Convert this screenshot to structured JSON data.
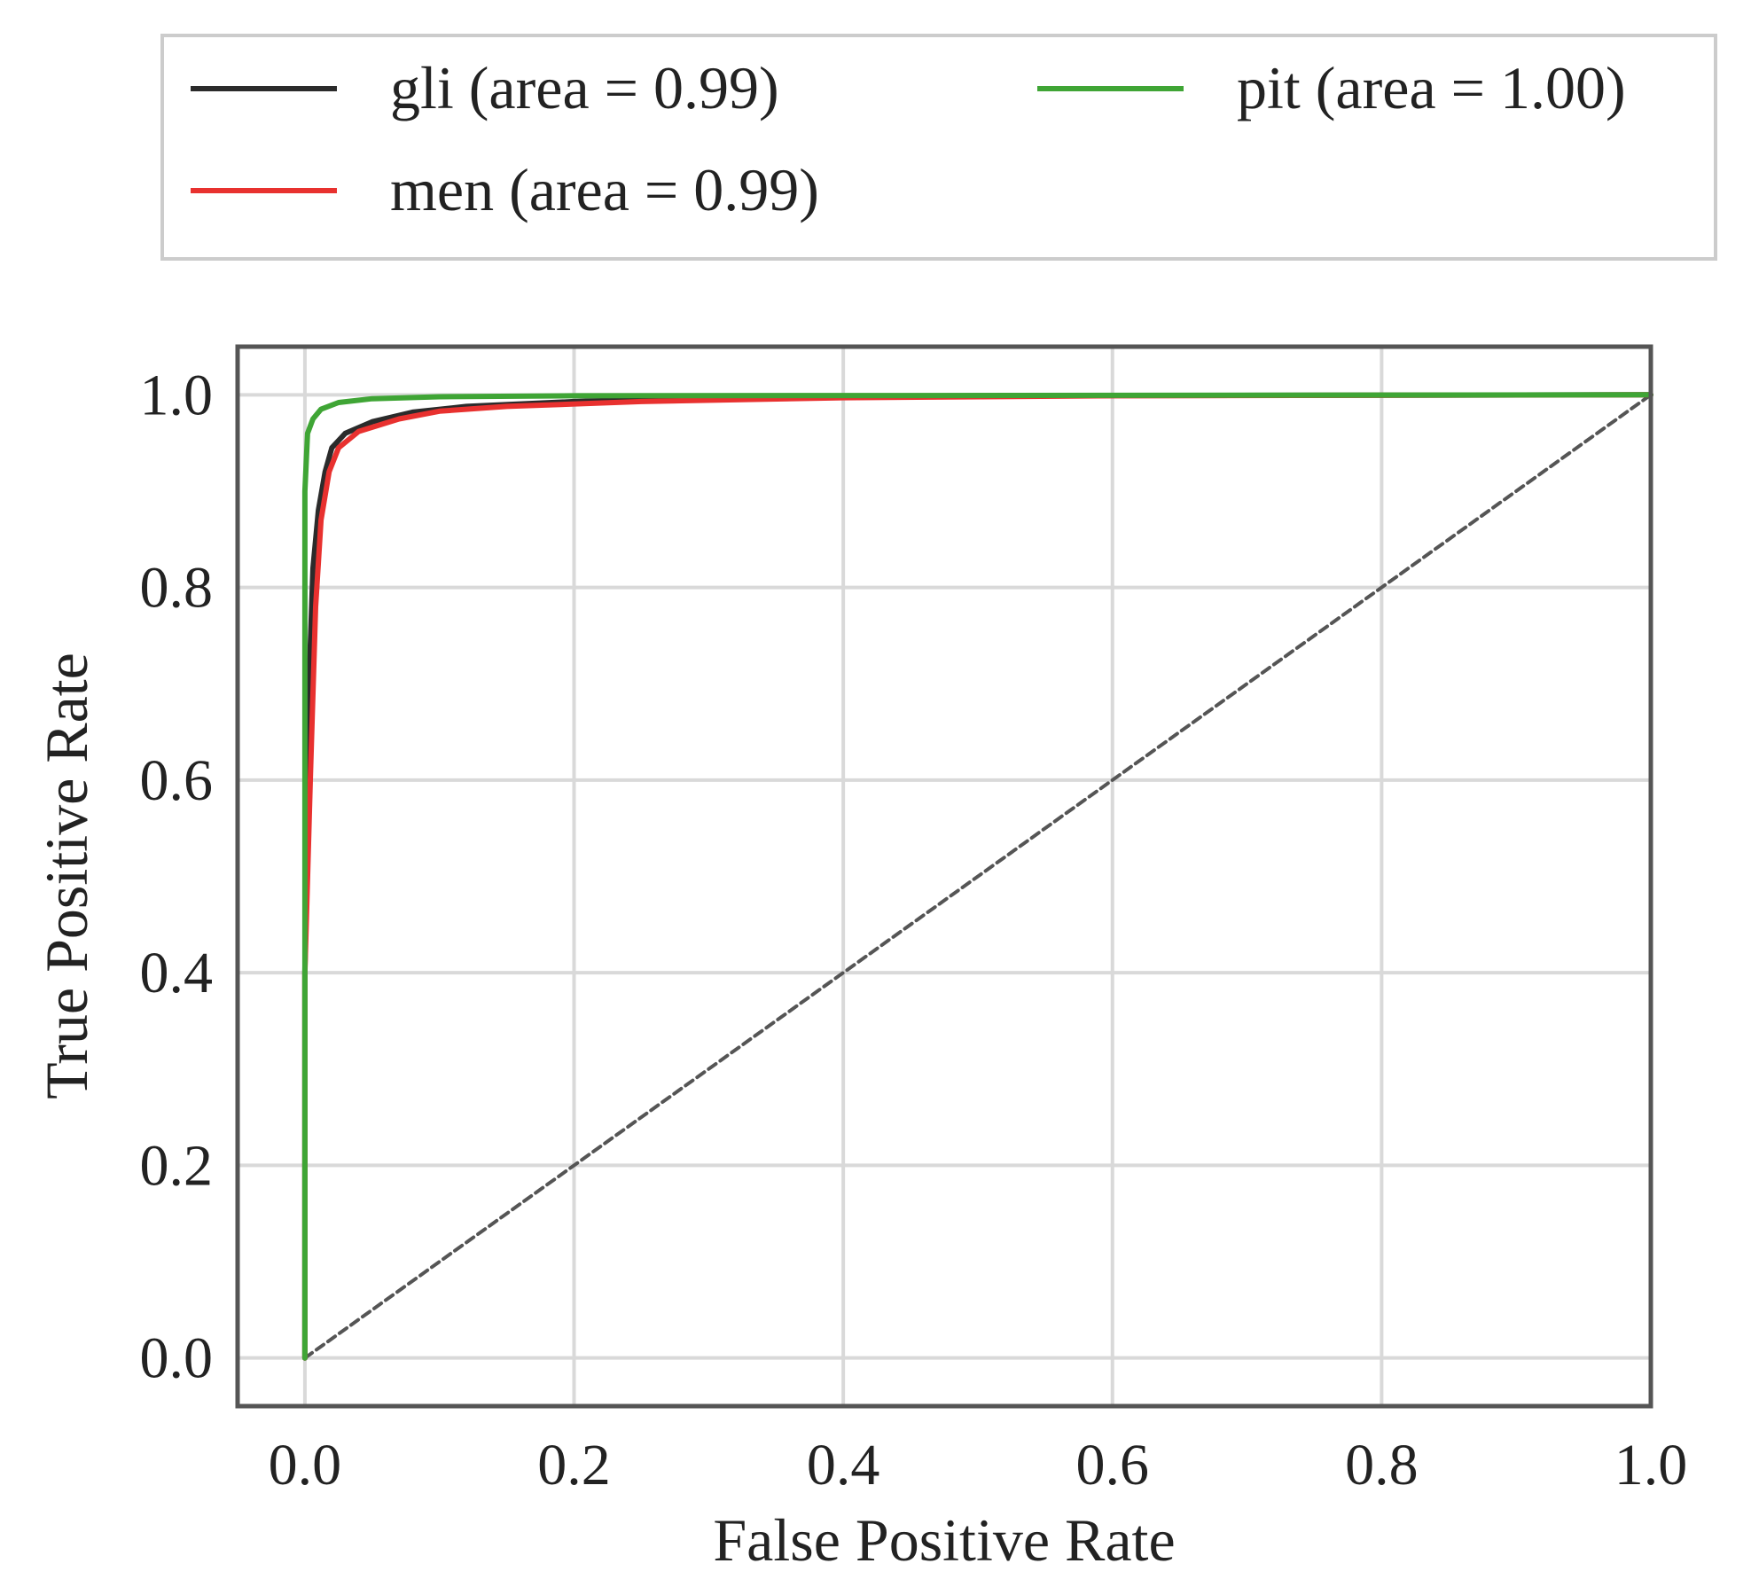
{
  "chart_data": {
    "type": "line",
    "title": "",
    "xlabel": "False Positive Rate",
    "ylabel": "True Positive Rate",
    "xlim": [
      -0.05,
      1.0
    ],
    "ylim": [
      -0.05,
      1.05
    ],
    "xticks": [
      "0.0",
      "0.2",
      "0.4",
      "0.6",
      "0.8",
      "1.0"
    ],
    "yticks": [
      "0.0",
      "0.2",
      "0.4",
      "0.6",
      "0.8",
      "1.0"
    ],
    "grid": true,
    "legend_position": "top (above plot)",
    "series": [
      {
        "name": "gli (area = 0.99)",
        "color": "#2b2b2b",
        "points": [
          [
            0,
            0
          ],
          [
            0.0,
            0.4
          ],
          [
            0.003,
            0.7
          ],
          [
            0.006,
            0.82
          ],
          [
            0.01,
            0.88
          ],
          [
            0.015,
            0.92
          ],
          [
            0.02,
            0.945
          ],
          [
            0.03,
            0.96
          ],
          [
            0.05,
            0.972
          ],
          [
            0.08,
            0.982
          ],
          [
            0.12,
            0.988
          ],
          [
            0.2,
            0.993
          ],
          [
            0.3,
            0.997
          ],
          [
            0.5,
            0.999
          ],
          [
            1.0,
            1.0
          ]
        ]
      },
      {
        "name": "men (area = 0.99)",
        "color": "#e8312f",
        "points": [
          [
            0,
            0
          ],
          [
            0.0,
            0.4
          ],
          [
            0.004,
            0.6
          ],
          [
            0.008,
            0.78
          ],
          [
            0.012,
            0.87
          ],
          [
            0.018,
            0.92
          ],
          [
            0.025,
            0.945
          ],
          [
            0.04,
            0.962
          ],
          [
            0.07,
            0.975
          ],
          [
            0.1,
            0.983
          ],
          [
            0.15,
            0.988
          ],
          [
            0.25,
            0.993
          ],
          [
            0.4,
            0.997
          ],
          [
            0.6,
            0.999
          ],
          [
            1.0,
            1.0
          ]
        ]
      },
      {
        "name": "pit (area = 1.00)",
        "color": "#3fa535",
        "points": [
          [
            0,
            0
          ],
          [
            0.0,
            0.9
          ],
          [
            0.002,
            0.96
          ],
          [
            0.006,
            0.975
          ],
          [
            0.012,
            0.985
          ],
          [
            0.025,
            0.992
          ],
          [
            0.05,
            0.996
          ],
          [
            0.1,
            0.998
          ],
          [
            0.2,
            0.999
          ],
          [
            1.0,
            1.0
          ]
        ]
      },
      {
        "name": "",
        "color": "#555555",
        "dashed": true,
        "points": [
          [
            0,
            0
          ],
          [
            1,
            1
          ]
        ]
      }
    ]
  }
}
